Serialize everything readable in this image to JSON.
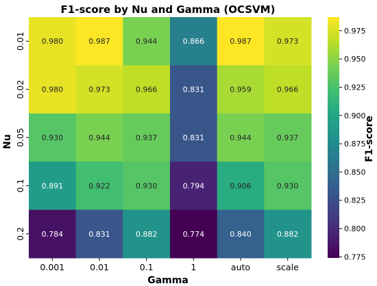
{
  "chart_data": {
    "type": "heatmap",
    "title": "F1-score by Nu and Gamma (OCSVM)",
    "xlabel": "Gamma",
    "ylabel": "Nu",
    "x_categories": [
      "0.001",
      "0.01",
      "0.1",
      "1",
      "auto",
      "scale"
    ],
    "y_categories": [
      "0.01",
      "0.02",
      "0.05",
      "0.1",
      "0.2"
    ],
    "values": [
      [
        0.98,
        0.987,
        0.944,
        0.866,
        0.987,
        0.973
      ],
      [
        0.98,
        0.973,
        0.966,
        0.831,
        0.959,
        0.966
      ],
      [
        0.93,
        0.944,
        0.937,
        0.831,
        0.944,
        0.937
      ],
      [
        0.891,
        0.922,
        0.93,
        0.794,
        0.906,
        0.93
      ],
      [
        0.784,
        0.831,
        0.882,
        0.774,
        0.84,
        0.882
      ]
    ],
    "value_labels": [
      [
        "0.980",
        "0.987",
        "0.944",
        "0.866",
        "0.987",
        "0.973"
      ],
      [
        "0.980",
        "0.973",
        "0.966",
        "0.831",
        "0.959",
        "0.966"
      ],
      [
        "0.930",
        "0.944",
        "0.937",
        "0.831",
        "0.944",
        "0.937"
      ],
      [
        "0.891",
        "0.922",
        "0.930",
        "0.794",
        "0.906",
        "0.930"
      ],
      [
        "0.784",
        "0.831",
        "0.882",
        "0.774",
        "0.840",
        "0.882"
      ]
    ],
    "colormap": "viridis",
    "colorbar": {
      "label": "F1-score",
      "range": [
        0.774,
        0.987
      ],
      "ticks": [
        0.775,
        0.8,
        0.825,
        0.85,
        0.875,
        0.9,
        0.925,
        0.95,
        0.975
      ],
      "tick_labels": [
        "0.775",
        "0.800",
        "0.825",
        "0.850",
        "0.875",
        "0.900",
        "0.925",
        "0.950",
        "0.975"
      ]
    },
    "grid": false,
    "legend": "colorbar-right"
  }
}
